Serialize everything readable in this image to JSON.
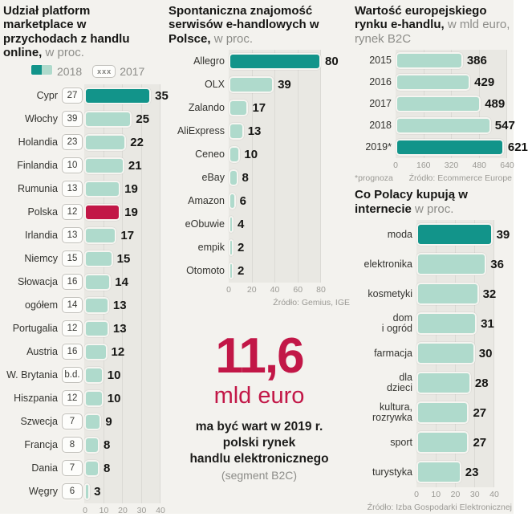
{
  "colors": {
    "page_bg": "#f3f2ee",
    "plot_bg": "#e9e8e3",
    "grid": "#dbdad5",
    "teal_dark": "#12948a",
    "teal_light": "#afdacc",
    "red": "#c21747",
    "ink": "#1d1d1b",
    "gray": "#8d8d89",
    "box_border": "#c2c1bc"
  },
  "chart_data": [
    {
      "type": "bar",
      "orientation": "horizontal",
      "title": "Udział platform marketplace w przychodach z handlu online,",
      "subtitle": " w proc.",
      "legend": {
        "new_label": "2018",
        "old_box": "xxx",
        "old_label": "2017"
      },
      "axis_max": 40,
      "axis_ticks": [
        "0",
        "10",
        "20",
        "30",
        "40"
      ],
      "rows": [
        {
          "label": "Cypr",
          "prev": "27",
          "value": 35,
          "color": "dark"
        },
        {
          "label": "Włochy",
          "prev": "39",
          "value": 25
        },
        {
          "label": "Holandia",
          "prev": "23",
          "value": 22
        },
        {
          "label": "Finlandia",
          "prev": "10",
          "value": 21
        },
        {
          "label": "Rumunia",
          "prev": "13",
          "value": 19
        },
        {
          "label": "Polska",
          "prev": "12",
          "value": 19,
          "color": "red"
        },
        {
          "label": "Irlandia",
          "prev": "13",
          "value": 17
        },
        {
          "label": "Niemcy",
          "prev": "15",
          "value": 15
        },
        {
          "label": "Słowacja",
          "prev": "16",
          "value": 14
        },
        {
          "label": "ogółem",
          "prev": "14",
          "value": 13
        },
        {
          "label": "Portugalia",
          "prev": "12",
          "value": 13
        },
        {
          "label": "Austria",
          "prev": "16",
          "value": 12
        },
        {
          "label": "W. Brytania",
          "prev": "b.d.",
          "value": 10
        },
        {
          "label": "Hiszpania",
          "prev": "12",
          "value": 10
        },
        {
          "label": "Szwecja",
          "prev": "7",
          "value": 9
        },
        {
          "label": "Francja",
          "prev": "8",
          "value": 8
        },
        {
          "label": "Dania",
          "prev": "7",
          "value": 8
        },
        {
          "label": "Węgry",
          "prev": "6",
          "value": 3
        }
      ]
    },
    {
      "type": "bar",
      "orientation": "horizontal",
      "title": "Spontaniczna znajomość serwisów e-handlowych w Polsce,",
      "subtitle": " w proc.",
      "axis_max": 80,
      "axis_ticks": [
        "0",
        "20",
        "40",
        "60",
        "80"
      ],
      "source": "Źródło: Gemius, IGE",
      "rows": [
        {
          "label": "Allegro",
          "value": 80,
          "color": "dark"
        },
        {
          "label": "OLX",
          "value": 39
        },
        {
          "label": "Zalando",
          "value": 17
        },
        {
          "label": "AliExpress",
          "value": 13
        },
        {
          "label": "Ceneo",
          "value": 10
        },
        {
          "label": "eBay",
          "value": 8
        },
        {
          "label": "Amazon",
          "value": 6
        },
        {
          "label": "eObuwie",
          "value": 4
        },
        {
          "label": "empik",
          "value": 2
        },
        {
          "label": "Otomoto",
          "value": 2
        }
      ]
    },
    {
      "type": "bar",
      "orientation": "horizontal",
      "title": "Wartość europejskiego rynku e-handlu,",
      "subtitle": " w mld euro, rynek B2C",
      "axis_max": 640,
      "axis_ticks": [
        "0",
        "160",
        "320",
        "480",
        "640"
      ],
      "footnote": "*prognoza",
      "source": "Źródło: Ecommerce Europe",
      "rows": [
        {
          "label": "2015",
          "value": 386
        },
        {
          "label": "2016",
          "value": 429
        },
        {
          "label": "2017",
          "value": 489
        },
        {
          "label": "2018",
          "value": 547
        },
        {
          "label": "2019*",
          "value": 621,
          "color": "dark"
        }
      ]
    },
    {
      "type": "bar",
      "orientation": "horizontal",
      "title": "Co Polacy kupują w internecie",
      "subtitle": " w proc.",
      "axis_max": 40,
      "axis_ticks": [
        "0",
        "10",
        "20",
        "30",
        "40"
      ],
      "source": "Źródło: Izba Gospodarki Elektronicznej",
      "rows": [
        {
          "label": "moda",
          "value": 39,
          "color": "dark"
        },
        {
          "label": "elektronika",
          "value": 36
        },
        {
          "label": "kosmetyki",
          "value": 32
        },
        {
          "label": "dom\ni ogród",
          "value": 31
        },
        {
          "label": "farmacja",
          "value": 30
        },
        {
          "label": "dla\ndzieci",
          "value": 28
        },
        {
          "label": "kultura,\nrozrywka",
          "value": 27
        },
        {
          "label": "sport",
          "value": 27
        },
        {
          "label": "turystyka",
          "value": 23
        }
      ]
    }
  ],
  "highlight": {
    "number": "11,6",
    "unit": "mld euro",
    "description": "ma być wart w 2019 r.\npolski rynek\nhandlu elektronicznego",
    "note": "(segment B2C)"
  }
}
